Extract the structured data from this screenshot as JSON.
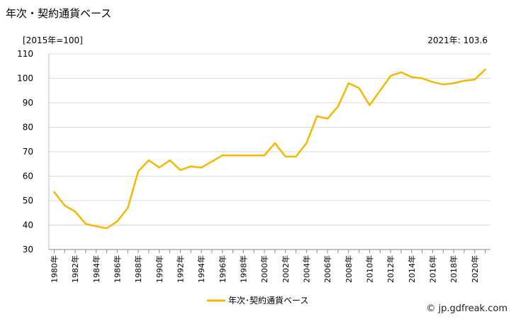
{
  "chart_data": {
    "type": "line",
    "title": "年次・契約通貨ベース",
    "unit_label": "[2015年=100]",
    "latest_label": "2021年: 103.6",
    "credit": "© jp.gdfreak.com",
    "ylim": [
      30,
      110
    ],
    "yticks": [
      30,
      40,
      50,
      60,
      70,
      80,
      90,
      100,
      110
    ],
    "xticks": [
      "1980年",
      "1982年",
      "1984年",
      "1986年",
      "1988年",
      "1990年",
      "1992年",
      "1994年",
      "1996年",
      "1998年",
      "2000年",
      "2002年",
      "2004年",
      "2006年",
      "2008年",
      "2010年",
      "2012年",
      "2014年",
      "2016年",
      "2018年",
      "2020年"
    ],
    "grid": true,
    "legend_position": "bottom",
    "series": [
      {
        "name": "年次･契約通貨ベース",
        "color": "#f5b800",
        "x": [
          1980,
          1981,
          1982,
          1983,
          1984,
          1985,
          1986,
          1987,
          1988,
          1989,
          1990,
          1991,
          1992,
          1993,
          1994,
          1995,
          1996,
          1997,
          1998,
          1999,
          2000,
          2001,
          2002,
          2003,
          2004,
          2005,
          2006,
          2007,
          2008,
          2009,
          2010,
          2011,
          2012,
          2013,
          2014,
          2015,
          2016,
          2017,
          2018,
          2019,
          2020,
          2021
        ],
        "values": [
          53.5,
          48,
          45.5,
          40.5,
          39.5,
          38.7,
          41.5,
          47,
          62,
          66.5,
          63.5,
          66.5,
          62.5,
          64,
          63.5,
          66,
          68.5,
          68.5,
          68.5,
          68.5,
          68.5,
          73.5,
          68,
          68,
          73.5,
          84.5,
          83.5,
          88.5,
          98,
          96,
          89,
          95,
          101,
          102.5,
          100.5,
          100,
          98.5,
          97.5,
          98,
          99,
          99.5,
          103.6
        ]
      }
    ]
  }
}
